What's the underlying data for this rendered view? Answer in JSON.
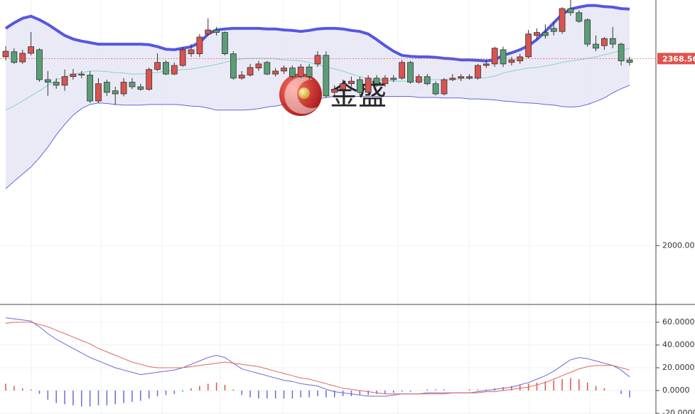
{
  "chart_data": {
    "type": "candlestick",
    "watermark": "金盛",
    "up_color": "#d9534f",
    "down_color": "#5a9e78",
    "band_fill": "#e6e6f5",
    "ylim": [
      1884,
      2484
    ],
    "yticks": [
      {
        "value": 2000,
        "label": "2000.00"
      }
    ],
    "last_price": 2368.56,
    "last_price_color": "#e0524a",
    "open": [
      2372,
      2382,
      2362,
      2379,
      2386,
      2327,
      2322,
      2316,
      2333,
      2338,
      2336,
      2285,
      2322,
      2305,
      2299,
      2322,
      2313,
      2308,
      2347,
      2361,
      2338,
      2355,
      2378,
      2378,
      2417,
      2425,
      2420,
      2378,
      2330,
      2336,
      2350,
      2361,
      2338,
      2344,
      2350,
      2333,
      2352,
      2358,
      2375,
      2302,
      2308,
      2319,
      2327,
      2302,
      2330,
      2319,
      2330,
      2330,
      2361,
      2322,
      2333,
      2319,
      2299,
      2327,
      2330,
      2330,
      2330,
      2355,
      2358,
      2386,
      2361,
      2364,
      2372,
      2414,
      2420,
      2428,
      2422,
      2467,
      2459,
      2445,
      2397,
      2394,
      2408,
      2397,
      2366
    ],
    "high": [
      2393,
      2389,
      2386,
      2421,
      2389,
      2344,
      2330,
      2347,
      2348,
      2344,
      2344,
      2330,
      2327,
      2313,
      2330,
      2330,
      2319,
      2351,
      2379,
      2365,
      2361,
      2392,
      2397,
      2417,
      2448,
      2431,
      2422,
      2383,
      2344,
      2358,
      2364,
      2364,
      2350,
      2355,
      2355,
      2358,
      2358,
      2383,
      2383,
      2316,
      2327,
      2333,
      2333,
      2336,
      2336,
      2336,
      2336,
      2366,
      2364,
      2338,
      2338,
      2324,
      2330,
      2338,
      2338,
      2338,
      2358,
      2366,
      2392,
      2392,
      2372,
      2378,
      2425,
      2428,
      2436,
      2442,
      2470,
      2484,
      2464,
      2448,
      2414,
      2411,
      2431,
      2400,
      2372
    ],
    "low": [
      2365,
      2358,
      2358,
      2375,
      2323,
      2295,
      2309,
      2305,
      2327,
      2330,
      2281,
      2281,
      2295,
      2277,
      2294,
      2308,
      2305,
      2305,
      2344,
      2336,
      2336,
      2352,
      2372,
      2372,
      2414,
      2414,
      2375,
      2327,
      2327,
      2333,
      2344,
      2336,
      2333,
      2338,
      2330,
      2330,
      2327,
      2352,
      2291,
      2296,
      2302,
      2313,
      2296,
      2299,
      2313,
      2313,
      2322,
      2327,
      2319,
      2319,
      2316,
      2296,
      2296,
      2324,
      2324,
      2327,
      2327,
      2350,
      2352,
      2352,
      2355,
      2358,
      2369,
      2406,
      2408,
      2414,
      2417,
      2453,
      2439,
      2392,
      2383,
      2386,
      2389,
      2355,
      2355
    ],
    "close": [
      2383,
      2361,
      2379,
      2392,
      2327,
      2322,
      2316,
      2333,
      2338,
      2336,
      2285,
      2319,
      2302,
      2299,
      2322,
      2313,
      2308,
      2347,
      2361,
      2338,
      2355,
      2386,
      2386,
      2411,
      2425,
      2420,
      2378,
      2330,
      2336,
      2351,
      2358,
      2338,
      2344,
      2350,
      2333,
      2352,
      2333,
      2375,
      2295,
      2308,
      2319,
      2324,
      2302,
      2330,
      2319,
      2330,
      2327,
      2361,
      2322,
      2333,
      2319,
      2299,
      2327,
      2330,
      2333,
      2333,
      2355,
      2358,
      2389,
      2358,
      2366,
      2372,
      2417,
      2420,
      2414,
      2422,
      2467,
      2459,
      2442,
      2397,
      2389,
      2408,
      2397,
      2364,
      2361
    ],
    "bands": [
      {
        "color": "#5656e2",
        "values": [
          2428,
          2439,
          2448,
          2452,
          2445,
          2436,
          2425,
          2414,
          2407,
          2403,
          2400,
          2397,
          2397,
          2397,
          2397,
          2397,
          2397,
          2396,
          2392,
          2387,
          2386,
          2389,
          2392,
          2400,
          2417,
          2425,
          2427,
          2428,
          2428,
          2428,
          2428,
          2427,
          2427,
          2425,
          2424,
          2422,
          2424,
          2427,
          2428,
          2428,
          2427,
          2424,
          2422,
          2417,
          2406,
          2394,
          2383,
          2375,
          2373,
          2372,
          2372,
          2371,
          2369,
          2368,
          2366,
          2366,
          2365,
          2364,
          2366,
          2375,
          2380,
          2386,
          2394,
          2406,
          2422,
          2439,
          2456,
          2466,
          2470,
          2473,
          2473,
          2471,
          2470,
          2467,
          2466
        ]
      },
      {
        "color": "#82d4c8",
        "values": [
          2267,
          2275,
          2285,
          2295,
          2305,
          2316,
          2326,
          2333,
          2337,
          2341,
          2344,
          2344,
          2343,
          2341,
          2340,
          2338,
          2338,
          2340,
          2341,
          2344,
          2345,
          2347,
          2348,
          2351,
          2354,
          2357,
          2361,
          2365,
          2368,
          2369,
          2369,
          2369,
          2368,
          2366,
          2365,
          2364,
          2361,
          2357,
          2352,
          2348,
          2344,
          2338,
          2333,
          2329,
          2327,
          2326,
          2324,
          2324,
          2324,
          2326,
          2327,
          2327,
          2327,
          2327,
          2329,
          2329,
          2330,
          2331,
          2334,
          2340,
          2344,
          2347,
          2350,
          2351,
          2354,
          2357,
          2361,
          2364,
          2366,
          2369,
          2372,
          2376,
          2380,
          2385,
          2389
        ]
      },
      {
        "color": "#6464e0",
        "values": [
          2112,
          2127,
          2141,
          2155,
          2173,
          2194,
          2218,
          2239,
          2257,
          2270,
          2278,
          2281,
          2280,
          2278,
          2277,
          2277,
          2277,
          2278,
          2278,
          2278,
          2278,
          2277,
          2275,
          2274,
          2271,
          2267,
          2267,
          2267,
          2267,
          2268,
          2270,
          2273,
          2275,
          2278,
          2281,
          2284,
          2287,
          2289,
          2292,
          2294,
          2294,
          2294,
          2294,
          2294,
          2294,
          2294,
          2294,
          2294,
          2294,
          2292,
          2292,
          2292,
          2291,
          2291,
          2291,
          2289,
          2289,
          2288,
          2287,
          2285,
          2284,
          2282,
          2281,
          2280,
          2278,
          2277,
          2274,
          2273,
          2274,
          2278,
          2284,
          2291,
          2301,
          2309,
          2316
        ]
      }
    ],
    "indicator": {
      "type": "macd",
      "ylim": [
        -20.6,
        75.6
      ],
      "yticks": [
        {
          "value": -20,
          "label": "-20.0000"
        },
        {
          "value": 0,
          "label": "0.0000"
        },
        {
          "value": 20,
          "label": "20.0000"
        },
        {
          "value": 40,
          "label": "40.0000"
        },
        {
          "value": 60,
          "label": "60.0000"
        }
      ],
      "series": [
        {
          "color": "#6a6ad8",
          "values": [
            64,
            63,
            62,
            61,
            56,
            50,
            45,
            41,
            37,
            33,
            29,
            26,
            23,
            20,
            18,
            16,
            14,
            15,
            16,
            17,
            18,
            20,
            23,
            26,
            29,
            31,
            29,
            24,
            19,
            17,
            15,
            13,
            11,
            9,
            8,
            6,
            5,
            4,
            1,
            -1,
            -2,
            -3,
            -4,
            -5,
            -5,
            -5,
            -4,
            -3,
            -3,
            -3,
            -2,
            -2,
            -2,
            -2,
            -2,
            -2,
            -1,
            0,
            1,
            2,
            3,
            5,
            7,
            10,
            13,
            17,
            22,
            27,
            29,
            28,
            26,
            24,
            22,
            18,
            12
          ]
        },
        {
          "color": "#e2665f",
          "values": [
            59,
            60,
            60,
            60,
            58,
            56,
            53,
            50,
            47,
            44,
            41,
            37,
            34,
            31,
            28,
            25,
            23,
            21,
            20,
            20,
            20,
            20,
            21,
            22,
            23,
            24,
            25,
            24,
            23,
            22,
            21,
            19,
            17,
            15,
            13,
            11,
            10,
            8,
            6,
            4,
            2,
            1,
            0,
            -1,
            -2,
            -3,
            -3,
            -3,
            -3,
            -3,
            -3,
            -3,
            -3,
            -2,
            -2,
            -2,
            -2,
            -1,
            -1,
            0,
            1,
            2,
            3,
            5,
            7,
            10,
            13,
            16,
            19,
            21,
            22,
            22,
            22,
            20,
            18
          ]
        }
      ],
      "histogram": {
        "up_color": "#e0524a",
        "down_color": "#6a6ad8",
        "values": [
          6,
          4,
          2,
          1,
          -3,
          -8,
          -11,
          -12,
          -13,
          -14,
          -14,
          -13,
          -13,
          -12,
          -11,
          -10,
          -9,
          -7,
          -5,
          -4,
          -3,
          -1,
          2,
          4,
          6,
          7,
          5,
          1,
          -4,
          -6,
          -7,
          -7,
          -7,
          -7,
          -7,
          -6,
          -6,
          -5,
          -6,
          -6,
          -5,
          -5,
          -4,
          -4,
          -3,
          -3,
          -2,
          -1,
          -1,
          0,
          1,
          1,
          1,
          0,
          0,
          1,
          1,
          1,
          2,
          3,
          4,
          5,
          6,
          7,
          8,
          9,
          10,
          11,
          10,
          7,
          4,
          2,
          0,
          -3,
          -6
        ]
      }
    }
  }
}
